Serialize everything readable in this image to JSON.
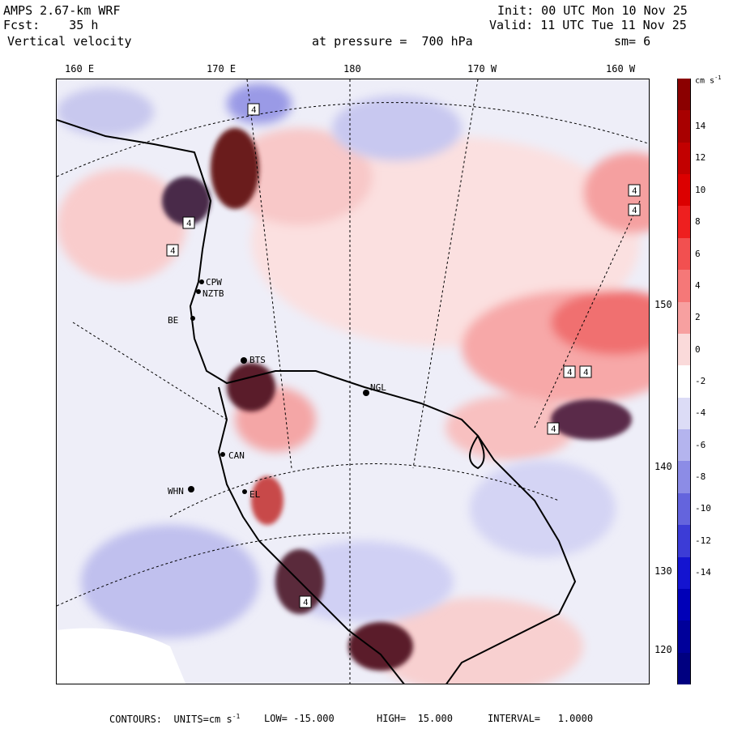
{
  "header": {
    "model": "AMPS 2.67-km WRF",
    "forecast": "Fcst:    35 h",
    "field": "Vertical velocity",
    "init": "Init: 00 UTC Mon 10 Nov 25",
    "valid": "Valid: 11 UTC Tue 11 Nov 25",
    "pressure": "at pressure =  700 hPa",
    "smoothing": "sm= 6"
  },
  "longitude_ticks": [
    "160 E",
    "170 E",
    "180",
    "170 W",
    "160 W"
  ],
  "latitude_labels": [
    "150 W",
    "140 W",
    "130 W",
    "120 W"
  ],
  "colorbar": {
    "units": "cm s",
    "units_exp": "-1",
    "labels": [
      "14",
      "12",
      "10",
      "8",
      "6",
      "4",
      "2",
      "0",
      "-2",
      "-4",
      "-6",
      "-8",
      "-10",
      "-12",
      "-14"
    ],
    "colors": [
      "#8b0000",
      "#a80000",
      "#c20000",
      "#dc0000",
      "#ee1f1f",
      "#f25050",
      "#f57878",
      "#f7a0a0",
      "#fadada",
      "#ffffff",
      "#dcdcf6",
      "#b4b4ee",
      "#8c8ce6",
      "#6464dd",
      "#3c3cd6",
      "#1414d0",
      "#0000b8",
      "#00009a",
      "#000080"
    ]
  },
  "stations": [
    "CPW",
    "NZTB",
    "BE",
    "BTS",
    "NGL",
    "CAN",
    "WHN",
    "EL"
  ],
  "footer": {
    "contours": "CONTOURS:  UNITS=cm s",
    "exp": "-1",
    "low": "LOW= -15.000",
    "high": "HIGH=  15.000",
    "interval": "INTERVAL=   1.0000"
  }
}
